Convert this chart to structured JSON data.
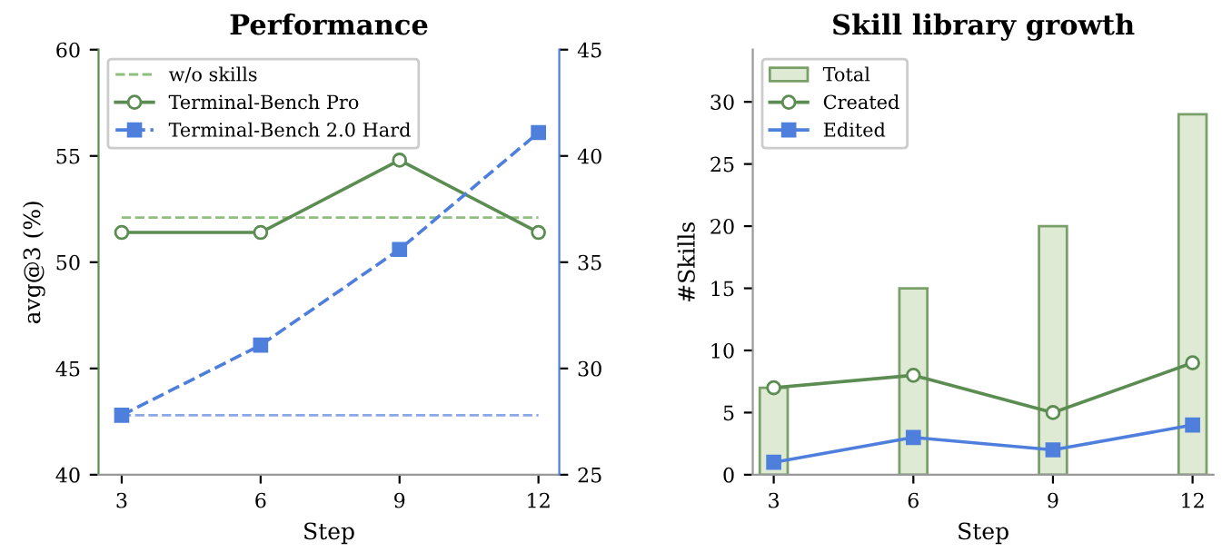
{
  "chart_data": [
    {
      "type": "line",
      "title": "Performance",
      "xlabel": "Step",
      "ylabel": "avg@3 (%)",
      "x": [
        3,
        6,
        9,
        12
      ],
      "xlim": [
        2.5,
        12.45
      ],
      "xticks": [
        3,
        6,
        9,
        12
      ],
      "ylim": [
        40,
        60
      ],
      "yticks": [
        40,
        45,
        50,
        55,
        60
      ],
      "y2lim": [
        25,
        45
      ],
      "y2ticks": [
        25,
        30,
        35,
        40,
        45
      ],
      "grid": false,
      "legend": "top left",
      "series": [
        {
          "name": "Terminal-Bench Pro",
          "color": "#5b8c51",
          "values": [
            51.4,
            51.4,
            54.8,
            51.4
          ],
          "marker": "circle",
          "line_style": "solid"
        },
        {
          "name": "Terminal-Bench 2.0 Hard",
          "color": "#4f7fdc",
          "values": [
            27.8,
            31.1,
            35.6,
            41.1
          ],
          "marker": "square",
          "line_style": "dashed",
          "axis": "y2"
        }
      ],
      "ref_lines": [
        {
          "axis": "y",
          "value": 52.1,
          "label": "w/o skills",
          "color": "#8fbf7f",
          "line_style": "dashed"
        },
        {
          "axis": "y2",
          "value": 27.8,
          "label": null,
          "color": "#8aa8e8",
          "line_style": "dashed"
        }
      ]
    },
    {
      "type": "line",
      "title": "Skill library growth",
      "xlabel": "Step",
      "ylabel": "#Skills",
      "x": [
        3,
        6,
        9,
        12
      ],
      "xlim": [
        2.55,
        12.45
      ],
      "xticks": [
        3,
        6,
        9,
        12
      ],
      "ylim": [
        0,
        34.2
      ],
      "yticks": [
        0,
        5,
        10,
        15,
        20,
        25,
        30
      ],
      "grid": false,
      "legend": "top left",
      "series": [
        {
          "name": "Total",
          "type": "bar",
          "color": "#dfead4",
          "values": [
            7,
            15,
            20,
            29
          ]
        },
        {
          "name": "Created",
          "color": "#5b8c51",
          "values": [
            7,
            8,
            5,
            9
          ],
          "marker": "circle",
          "line_style": "solid"
        },
        {
          "name": "Edited",
          "color": "#4f7fdc",
          "values": [
            1,
            3,
            2,
            4
          ],
          "marker": "square",
          "line_style": "solid"
        }
      ]
    }
  ]
}
